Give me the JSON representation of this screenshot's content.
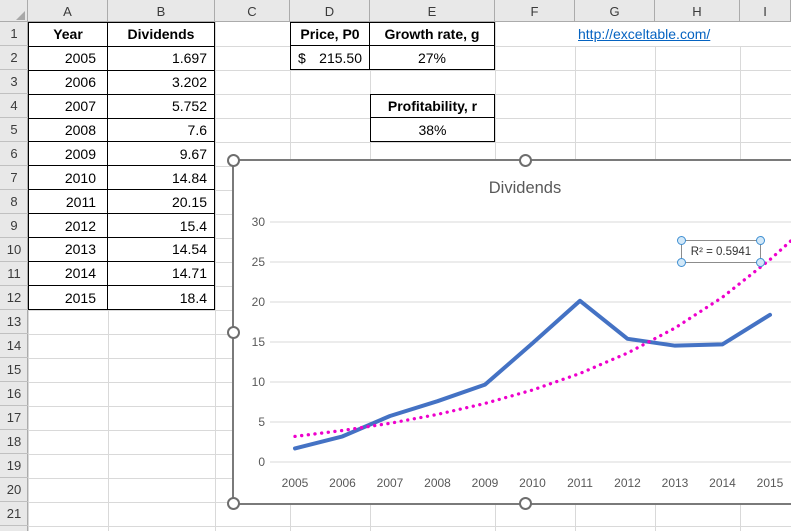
{
  "sheet": {
    "column_headers": [
      "A",
      "B",
      "C",
      "D",
      "E",
      "F",
      "G",
      "H",
      "I"
    ],
    "row_headers": [
      "1",
      "2",
      "3",
      "4",
      "5",
      "6",
      "7",
      "8",
      "9",
      "10",
      "11",
      "12",
      "13",
      "14",
      "15",
      "16",
      "17",
      "18",
      "19",
      "20",
      "21"
    ],
    "data_table": {
      "headers": [
        "Year",
        "Dividends"
      ],
      "rows": [
        [
          "2005",
          "1.697"
        ],
        [
          "2006",
          "3.202"
        ],
        [
          "2007",
          "5.752"
        ],
        [
          "2008",
          "7.6"
        ],
        [
          "2009",
          "9.67"
        ],
        [
          "2010",
          "14.84"
        ],
        [
          "2011",
          "20.15"
        ],
        [
          "2012",
          "15.4"
        ],
        [
          "2013",
          "14.54"
        ],
        [
          "2014",
          "14.71"
        ],
        [
          "2015",
          "18.4"
        ]
      ]
    },
    "price_block": {
      "label": "Price, P0",
      "currency": "$",
      "value": "215.50",
      "growth_label": "Growth rate, g",
      "growth_value": "27%"
    },
    "profit_block": {
      "label": "Profitability, r",
      "value": "38%"
    },
    "link": {
      "text": "http://exceltable.com/",
      "color": "#0563c1"
    }
  },
  "chart_data": {
    "type": "line",
    "title": "Dividends",
    "x": [
      2005,
      2006,
      2007,
      2008,
      2009,
      2010,
      2011,
      2012,
      2013,
      2014,
      2015
    ],
    "series": [
      {
        "name": "Dividends",
        "color": "#4472C4",
        "values": [
          1.697,
          3.202,
          5.752,
          7.6,
          9.67,
          14.84,
          20.15,
          15.4,
          14.54,
          14.71,
          18.4
        ]
      }
    ],
    "trendline": {
      "type": "exponential",
      "color": "#EE00CC",
      "r_squared_label": "R² = 0.5941",
      "values": [
        3.2,
        3.94,
        4.84,
        5.95,
        7.32,
        9.0,
        11.07,
        13.62,
        16.75,
        20.6,
        25.3
      ],
      "extension": {
        "x": 2015.45,
        "value": 27.7
      }
    },
    "ylim": [
      0,
      30
    ],
    "ytick_step": 5,
    "grid": true,
    "legend": "none"
  }
}
